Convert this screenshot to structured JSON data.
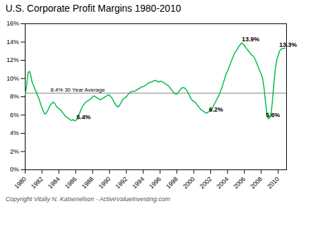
{
  "chart_data": {
    "type": "line",
    "title": "U.S. Corporate Profit Margins 1980-2010",
    "caption": "Copyright Vitaliy N. Katsenelson - ActiveValueInvesting.com",
    "color": "#00bb44",
    "grid": false,
    "xlim": [
      1980,
      2011
    ],
    "ylim": [
      0,
      16
    ],
    "xticks": [
      1980,
      1982,
      1984,
      1986,
      1988,
      1990,
      1992,
      1994,
      1996,
      1998,
      2000,
      2002,
      2004,
      2006,
      2008,
      2010
    ],
    "yticks": [
      {
        "value": 0,
        "label": "0%"
      },
      {
        "value": 2,
        "label": "2%"
      },
      {
        "value": 4,
        "label": "4%"
      },
      {
        "value": 6,
        "label": "6%"
      },
      {
        "value": 8,
        "label": "8%"
      },
      {
        "value": 10,
        "label": "10%"
      },
      {
        "value": 12,
        "label": "12%"
      },
      {
        "value": 14,
        "label": "14%"
      },
      {
        "value": 16,
        "label": "16%"
      }
    ],
    "average": {
      "value": 8.4,
      "label": "8.4% 30 Year Average",
      "x": 1983.0,
      "color": "#808080"
    },
    "annotations": [
      {
        "x": 1986.1,
        "y": 5.4,
        "label": "5.4%"
      },
      {
        "x": 2001.8,
        "y": 6.2,
        "label": "6.2%"
      },
      {
        "x": 2005.7,
        "y": 13.9,
        "label": "13.9%"
      },
      {
        "x": 2008.55,
        "y": 5.6,
        "label": "5.6%"
      },
      {
        "x": 2010.15,
        "y": 13.3,
        "label": "13.3%"
      }
    ],
    "x": [
      1980.0,
      1980.17,
      1980.33,
      1980.5,
      1980.67,
      1980.83,
      1981.0,
      1981.17,
      1981.33,
      1981.5,
      1981.67,
      1981.83,
      1982.0,
      1982.17,
      1982.33,
      1982.5,
      1982.67,
      1982.83,
      1983.0,
      1983.17,
      1983.33,
      1983.5,
      1983.67,
      1983.83,
      1984.0,
      1984.17,
      1984.33,
      1984.5,
      1984.67,
      1984.83,
      1985.0,
      1985.17,
      1985.33,
      1985.5,
      1985.67,
      1985.83,
      1986.0,
      1986.17,
      1986.33,
      1986.5,
      1986.67,
      1986.83,
      1987.0,
      1987.17,
      1987.33,
      1987.5,
      1987.67,
      1987.83,
      1988.0,
      1988.17,
      1988.33,
      1988.5,
      1988.67,
      1988.83,
      1989.0,
      1989.17,
      1989.33,
      1989.5,
      1989.67,
      1989.83,
      1990.0,
      1990.17,
      1990.33,
      1990.5,
      1990.67,
      1990.83,
      1991.0,
      1991.17,
      1991.33,
      1991.5,
      1991.67,
      1991.83,
      1992.0,
      1992.17,
      1992.33,
      1992.5,
      1992.67,
      1992.83,
      1993.0,
      1993.17,
      1993.33,
      1993.5,
      1993.67,
      1993.83,
      1994.0,
      1994.17,
      1994.33,
      1994.5,
      1994.67,
      1994.83,
      1995.0,
      1995.17,
      1995.33,
      1995.5,
      1995.67,
      1995.83,
      1996.0,
      1996.17,
      1996.33,
      1996.5,
      1996.67,
      1996.83,
      1997.0,
      1997.17,
      1997.33,
      1997.5,
      1997.67,
      1997.83,
      1998.0,
      1998.17,
      1998.33,
      1998.5,
      1998.67,
      1998.83,
      1999.0,
      1999.17,
      1999.33,
      1999.5,
      1999.67,
      1999.83,
      2000.0,
      2000.17,
      2000.33,
      2000.5,
      2000.67,
      2000.83,
      2001.0,
      2001.17,
      2001.33,
      2001.5,
      2001.67,
      2001.83,
      2002.0,
      2002.17,
      2002.33,
      2002.5,
      2002.67,
      2002.83,
      2003.0,
      2003.17,
      2003.33,
      2003.5,
      2003.67,
      2003.83,
      2004.0,
      2004.17,
      2004.33,
      2004.5,
      2004.67,
      2004.83,
      2005.0,
      2005.17,
      2005.33,
      2005.5,
      2005.67,
      2005.83,
      2006.0,
      2006.17,
      2006.33,
      2006.5,
      2006.67,
      2006.83,
      2007.0,
      2007.17,
      2007.33,
      2007.5,
      2007.67,
      2007.83,
      2008.0,
      2008.17,
      2008.33,
      2008.5,
      2008.67,
      2008.83,
      2009.0,
      2009.17,
      2009.33,
      2009.5,
      2009.67,
      2009.83,
      2010.0,
      2010.17,
      2010.33,
      2010.5,
      2010.67,
      2010.83
    ],
    "values": [
      8.3,
      9.2,
      10.6,
      10.8,
      10.3,
      9.6,
      9.2,
      8.8,
      8.5,
      8.1,
      7.7,
      7.2,
      6.8,
      6.4,
      6.1,
      6.2,
      6.5,
      6.8,
      7.1,
      7.3,
      7.4,
      7.3,
      7.0,
      6.8,
      6.7,
      6.6,
      6.4,
      6.2,
      6.0,
      5.8,
      5.7,
      5.6,
      5.5,
      5.4,
      5.5,
      5.4,
      5.4,
      5.6,
      5.9,
      6.3,
      6.7,
      7.0,
      7.2,
      7.4,
      7.5,
      7.6,
      7.7,
      7.8,
      8.0,
      8.1,
      8.0,
      7.9,
      7.8,
      7.7,
      7.7,
      7.8,
      7.9,
      8.0,
      8.1,
      8.2,
      8.2,
      8.0,
      7.8,
      7.5,
      7.2,
      7.0,
      6.9,
      7.0,
      7.3,
      7.6,
      7.8,
      7.9,
      8.0,
      8.2,
      8.4,
      8.5,
      8.6,
      8.6,
      8.6,
      8.7,
      8.8,
      8.9,
      9.0,
      9.1,
      9.1,
      9.2,
      9.3,
      9.4,
      9.5,
      9.6,
      9.6,
      9.7,
      9.8,
      9.8,
      9.7,
      9.6,
      9.7,
      9.7,
      9.6,
      9.5,
      9.4,
      9.3,
      9.2,
      9.0,
      8.8,
      8.6,
      8.4,
      8.3,
      8.3,
      8.5,
      8.7,
      8.9,
      9.0,
      9.0,
      8.9,
      8.7,
      8.4,
      8.1,
      7.8,
      7.6,
      7.5,
      7.4,
      7.2,
      7.0,
      6.8,
      6.6,
      6.5,
      6.4,
      6.3,
      6.2,
      6.3,
      6.4,
      6.5,
      6.7,
      7.0,
      7.3,
      7.6,
      7.9,
      8.2,
      8.6,
      9.0,
      9.5,
      10.0,
      10.5,
      10.8,
      11.2,
      11.6,
      12.0,
      12.4,
      12.8,
      13.0,
      13.2,
      13.5,
      13.7,
      13.9,
      13.8,
      13.6,
      13.4,
      13.2,
      13.0,
      12.8,
      12.6,
      12.5,
      12.3,
      12.0,
      11.6,
      11.2,
      10.8,
      10.5,
      10.0,
      9.0,
      7.5,
      6.2,
      5.6,
      5.7,
      6.2,
      7.5,
      9.5,
      11.0,
      12.0,
      12.5,
      13.0,
      13.2,
      13.3,
      13.3,
      13.3
    ]
  }
}
